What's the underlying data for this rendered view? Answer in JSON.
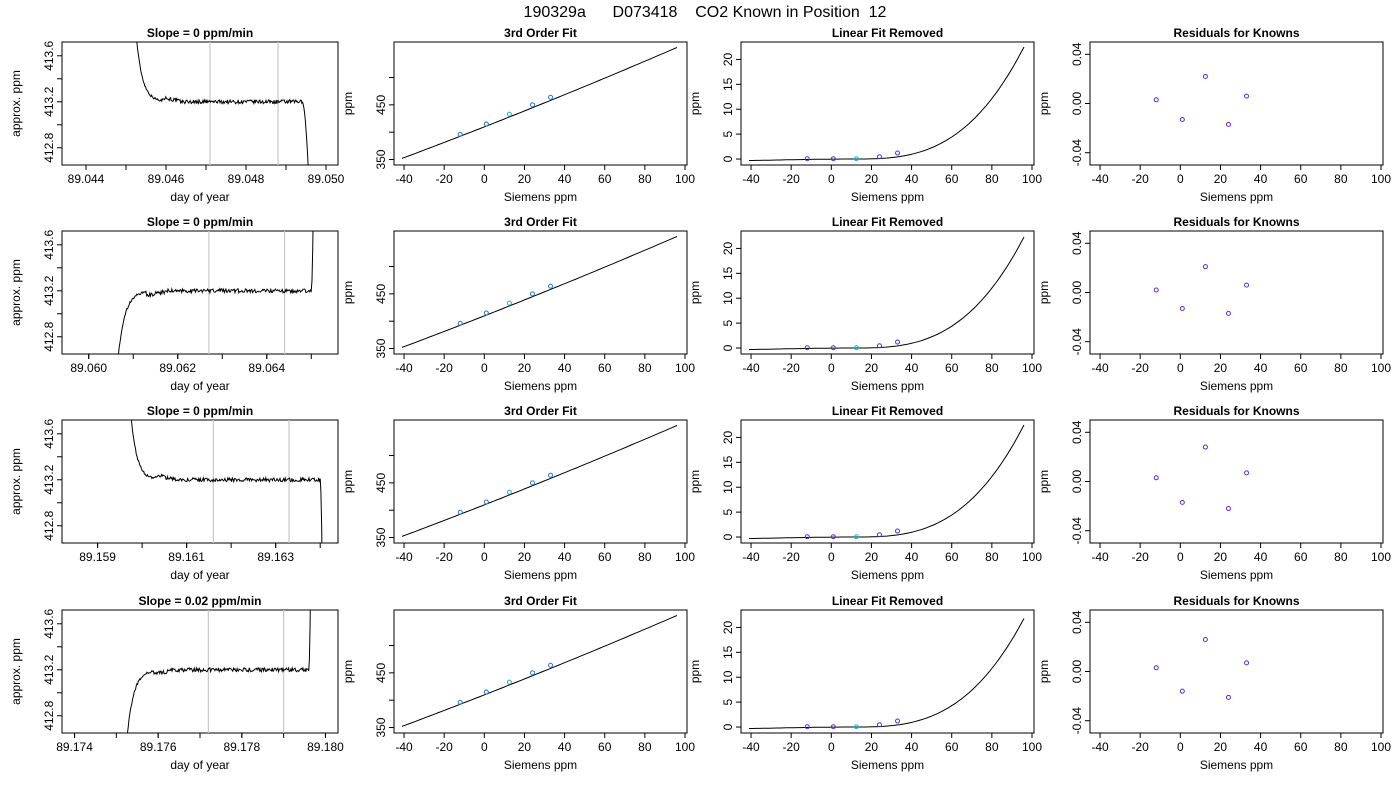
{
  "figure": {
    "title": "190329a      D073418    CO2 Known in Position  12"
  },
  "colors": {
    "axis": "#000000",
    "line": "#000000",
    "vline": "#c8c8c8",
    "point": "#5b2bd9",
    "point_alt": "#1f77d4",
    "point_ref": "#1fb4d6"
  },
  "chart_data": [
    {
      "row": 0,
      "col": 0,
      "type": "line",
      "title": "Slope =  0  ppm/min",
      "xlabel": "day of year",
      "ylabel": "approx. ppm",
      "xlim": [
        89.0434,
        89.0503
      ],
      "ylim": [
        412.65,
        413.72
      ],
      "xticks": [
        "89.044",
        "89.046",
        "89.048",
        "89.050"
      ],
      "xtick_values": [
        89.044,
        89.046,
        89.048,
        89.05
      ],
      "yticks": [
        "412.8",
        "413.2",
        "413.6"
      ],
      "ytick_values": [
        412.8,
        413.2,
        413.6
      ],
      "vlines": [
        89.0471,
        89.0488
      ],
      "x_start": 89.0452,
      "x_plateau": 89.0459,
      "x_drop": 89.0494,
      "x_end": 89.0496,
      "plateau_level": 413.2
    },
    {
      "row": 0,
      "col": 1,
      "type": "line",
      "title": "3rd Order Fit",
      "xlabel": "Siemens ppm",
      "ylabel": "ppm",
      "xlim": [
        -45,
        101
      ],
      "ylim": [
        340,
        565
      ],
      "xticks": [
        "-40",
        "-20",
        "0",
        "20",
        "40",
        "60",
        "80",
        "100"
      ],
      "xtick_values": [
        -40,
        -20,
        0,
        20,
        40,
        60,
        80,
        100
      ],
      "yticks": [
        "350",
        "450"
      ],
      "ytick_values": [
        350,
        450
      ],
      "ytick_minor": [
        400,
        500
      ],
      "curve": {
        "x0": -41,
        "x1": 96,
        "y0": 352,
        "y1": 555
      },
      "points": [
        {
          "x": -12,
          "y": 396
        },
        {
          "x": 1,
          "y": 415
        },
        {
          "x": 12.5,
          "y": 433
        },
        {
          "x": 24,
          "y": 450
        },
        {
          "x": 33,
          "y": 464
        }
      ]
    },
    {
      "row": 0,
      "col": 2,
      "type": "line",
      "title": "Linear Fit Removed",
      "xlabel": "Siemens ppm",
      "ylabel": "ppm",
      "xlim": [
        -45,
        101
      ],
      "ylim": [
        -1.2,
        23.5
      ],
      "xticks": [
        "-40",
        "-20",
        "0",
        "20",
        "40",
        "60",
        "80",
        "100"
      ],
      "xtick_values": [
        -40,
        -20,
        0,
        20,
        40,
        60,
        80,
        100
      ],
      "yticks": [
        "0",
        "5",
        "10",
        "15",
        "20"
      ],
      "ytick_values": [
        0,
        5,
        10,
        15,
        20
      ],
      "curve": {
        "x0": -41,
        "x1": 96,
        "end_value": 22.5
      },
      "points": [
        {
          "x": -12,
          "y": 0.05
        },
        {
          "x": 1,
          "y": 0.05
        },
        {
          "x": 12.5,
          "y": 0.05
        },
        {
          "x": 24,
          "y": 0.45
        },
        {
          "x": 33,
          "y": 1.2
        }
      ]
    },
    {
      "row": 0,
      "col": 3,
      "type": "scatter",
      "title": "Residuals for Knowns",
      "xlabel": "Siemens ppm",
      "ylabel": "ppm",
      "xlim": [
        -45,
        101
      ],
      "ylim": [
        -0.05,
        0.05
      ],
      "xticks": [
        "-40",
        "-20",
        "0",
        "20",
        "40",
        "60",
        "80",
        "100"
      ],
      "xtick_values": [
        -40,
        -20,
        0,
        20,
        40,
        60,
        80,
        100
      ],
      "yticks": [
        "-0.04",
        "0.00",
        "0.04"
      ],
      "ytick_values": [
        -0.04,
        0,
        0.04
      ],
      "points": [
        {
          "x": -12,
          "y": 0.003
        },
        {
          "x": 1,
          "y": -0.013
        },
        {
          "x": 12.5,
          "y": 0.022
        },
        {
          "x": 24,
          "y": -0.017
        },
        {
          "x": 33,
          "y": 0.006
        }
      ]
    },
    {
      "row": 1,
      "col": 0,
      "type": "line",
      "title": "Slope =  0  ppm/min",
      "xlabel": "day of year",
      "ylabel": "approx. ppm",
      "xlim": [
        89.0594,
        89.0656
      ],
      "ylim": [
        412.65,
        413.72
      ],
      "xticks": [
        "89.060",
        "89.062",
        "89.064"
      ],
      "xtick_values": [
        89.06,
        89.062,
        89.064
      ],
      "yticks": [
        "412.8",
        "413.2",
        "413.6"
      ],
      "ytick_values": [
        412.8,
        413.2,
        413.6
      ],
      "vlines": [
        89.0627,
        89.0644
      ],
      "x_start": 89.0606,
      "x_plateau": 89.0613,
      "x_drop": 89.065,
      "x_end": 89.06505,
      "plateau_level": 413.2,
      "rising": true
    },
    {
      "row": 1,
      "col": 1,
      "type": "line",
      "title": "3rd Order Fit",
      "xlabel": "Siemens ppm",
      "ylabel": "ppm",
      "xlim": [
        -45,
        101
      ],
      "ylim": [
        340,
        565
      ],
      "xticks": [
        "-40",
        "-20",
        "0",
        "20",
        "40",
        "60",
        "80",
        "100"
      ],
      "xtick_values": [
        -40,
        -20,
        0,
        20,
        40,
        60,
        80,
        100
      ],
      "yticks": [
        "350",
        "450"
      ],
      "ytick_values": [
        350,
        450
      ],
      "ytick_minor": [
        400,
        500
      ],
      "curve": {
        "x0": -41,
        "x1": 96,
        "y0": 352,
        "y1": 555
      },
      "points": [
        {
          "x": -12,
          "y": 396
        },
        {
          "x": 1,
          "y": 415
        },
        {
          "x": 12.5,
          "y": 433
        },
        {
          "x": 24,
          "y": 450
        },
        {
          "x": 33,
          "y": 464
        }
      ]
    },
    {
      "row": 1,
      "col": 2,
      "type": "line",
      "title": "Linear Fit Removed",
      "xlabel": "Siemens ppm",
      "ylabel": "ppm",
      "xlim": [
        -45,
        101
      ],
      "ylim": [
        -1.2,
        23.5
      ],
      "xticks": [
        "-40",
        "-20",
        "0",
        "20",
        "40",
        "60",
        "80",
        "100"
      ],
      "xtick_values": [
        -40,
        -20,
        0,
        20,
        40,
        60,
        80,
        100
      ],
      "yticks": [
        "0",
        "5",
        "10",
        "15",
        "20"
      ],
      "ytick_values": [
        0,
        5,
        10,
        15,
        20
      ],
      "curve": {
        "x0": -41,
        "x1": 96,
        "end_value": 22.3
      },
      "points": [
        {
          "x": -12,
          "y": 0.05
        },
        {
          "x": 1,
          "y": 0.05
        },
        {
          "x": 12.5,
          "y": 0.05
        },
        {
          "x": 24,
          "y": 0.45
        },
        {
          "x": 33,
          "y": 1.2
        }
      ]
    },
    {
      "row": 1,
      "col": 3,
      "type": "scatter",
      "title": "Residuals for Knowns",
      "xlabel": "Siemens ppm",
      "ylabel": "ppm",
      "xlim": [
        -45,
        101
      ],
      "ylim": [
        -0.05,
        0.05
      ],
      "xticks": [
        "-40",
        "-20",
        "0",
        "20",
        "40",
        "60",
        "80",
        "100"
      ],
      "xtick_values": [
        -40,
        -20,
        0,
        20,
        40,
        60,
        80,
        100
      ],
      "yticks": [
        "-0.04",
        "0.00",
        "0.04"
      ],
      "ytick_values": [
        -0.04,
        0,
        0.04
      ],
      "points": [
        {
          "x": -12,
          "y": 0.002
        },
        {
          "x": 1,
          "y": -0.013
        },
        {
          "x": 12.5,
          "y": 0.021
        },
        {
          "x": 24,
          "y": -0.017
        },
        {
          "x": 33,
          "y": 0.006
        }
      ]
    },
    {
      "row": 2,
      "col": 0,
      "type": "line",
      "title": "Slope =  0  ppm/min",
      "xlabel": "day of year",
      "ylabel": "approx. ppm",
      "xlim": [
        89.1582,
        89.1644
      ],
      "ylim": [
        412.65,
        413.72
      ],
      "xticks": [
        "89.159",
        "89.161",
        "89.163"
      ],
      "xtick_values": [
        89.159,
        89.161,
        89.163
      ],
      "yticks": [
        "412.8",
        "413.2",
        "413.6"
      ],
      "ytick_values": [
        412.8,
        413.2,
        413.6
      ],
      "vlines": [
        89.1616,
        89.1633
      ],
      "x_start": 89.1597,
      "x_plateau": 89.1603,
      "x_drop": 89.164,
      "x_end": 89.16405,
      "plateau_level": 413.2
    },
    {
      "row": 2,
      "col": 1,
      "type": "line",
      "title": "3rd Order Fit",
      "xlabel": "Siemens ppm",
      "ylabel": "ppm",
      "xlim": [
        -45,
        101
      ],
      "ylim": [
        340,
        565
      ],
      "xticks": [
        "-40",
        "-20",
        "0",
        "20",
        "40",
        "60",
        "80",
        "100"
      ],
      "xtick_values": [
        -40,
        -20,
        0,
        20,
        40,
        60,
        80,
        100
      ],
      "yticks": [
        "350",
        "450"
      ],
      "ytick_values": [
        350,
        450
      ],
      "ytick_minor": [
        400,
        500
      ],
      "curve": {
        "x0": -41,
        "x1": 96,
        "y0": 352,
        "y1": 555
      },
      "points": [
        {
          "x": -12,
          "y": 396
        },
        {
          "x": 1,
          "y": 415
        },
        {
          "x": 12.5,
          "y": 433
        },
        {
          "x": 24,
          "y": 450
        },
        {
          "x": 33,
          "y": 464
        }
      ]
    },
    {
      "row": 2,
      "col": 2,
      "type": "line",
      "title": "Linear Fit Removed",
      "xlabel": "Siemens ppm",
      "ylabel": "ppm",
      "xlim": [
        -45,
        101
      ],
      "ylim": [
        -1.2,
        23.5
      ],
      "xticks": [
        "-40",
        "-20",
        "0",
        "20",
        "40",
        "60",
        "80",
        "100"
      ],
      "xtick_values": [
        -40,
        -20,
        0,
        20,
        40,
        60,
        80,
        100
      ],
      "yticks": [
        "0",
        "5",
        "10",
        "15",
        "20"
      ],
      "ytick_values": [
        0,
        5,
        10,
        15,
        20
      ],
      "curve": {
        "x0": -41,
        "x1": 96,
        "end_value": 22.5
      },
      "points": [
        {
          "x": -12,
          "y": 0.05
        },
        {
          "x": 1,
          "y": 0.05
        },
        {
          "x": 12.5,
          "y": 0.05
        },
        {
          "x": 24,
          "y": 0.45
        },
        {
          "x": 33,
          "y": 1.2
        }
      ]
    },
    {
      "row": 2,
      "col": 3,
      "type": "scatter",
      "title": "Residuals for Knowns",
      "xlabel": "Siemens ppm",
      "ylabel": "ppm",
      "xlim": [
        -45,
        101
      ],
      "ylim": [
        -0.05,
        0.05
      ],
      "xticks": [
        "-40",
        "-20",
        "0",
        "20",
        "40",
        "60",
        "80",
        "100"
      ],
      "xtick_values": [
        -40,
        -20,
        0,
        20,
        40,
        60,
        80,
        100
      ],
      "yticks": [
        "-0.04",
        "0.00",
        "0.04"
      ],
      "ytick_values": [
        -0.04,
        0,
        0.04
      ],
      "points": [
        {
          "x": -12,
          "y": 0.003
        },
        {
          "x": 1,
          "y": -0.017
        },
        {
          "x": 12.5,
          "y": 0.028
        },
        {
          "x": 24,
          "y": -0.022
        },
        {
          "x": 33,
          "y": 0.007
        }
      ]
    },
    {
      "row": 3,
      "col": 0,
      "type": "line",
      "title": "Slope =  0.02  ppm/min",
      "xlabel": "day of year",
      "ylabel": "approx. ppm",
      "xlim": [
        89.1737,
        89.1803
      ],
      "ylim": [
        412.65,
        413.72
      ],
      "xticks": [
        "89.174",
        "89.176",
        "89.178",
        "89.180"
      ],
      "xtick_values": [
        89.174,
        89.176,
        89.178,
        89.18
      ],
      "yticks": [
        "412.8",
        "413.2",
        "413.6"
      ],
      "ytick_values": [
        412.8,
        413.2,
        413.6
      ],
      "vlines": [
        89.1772,
        89.179
      ],
      "x_start": 89.1752,
      "x_plateau": 89.1759,
      "x_drop": 89.1796,
      "x_end": 89.17965,
      "plateau_level": 413.2,
      "rising": true
    },
    {
      "row": 3,
      "col": 1,
      "type": "line",
      "title": "3rd Order Fit",
      "xlabel": "Siemens ppm",
      "ylabel": "ppm",
      "xlim": [
        -45,
        101
      ],
      "ylim": [
        340,
        565
      ],
      "xticks": [
        "-40",
        "-20",
        "0",
        "20",
        "40",
        "60",
        "80",
        "100"
      ],
      "xtick_values": [
        -40,
        -20,
        0,
        20,
        40,
        60,
        80,
        100
      ],
      "yticks": [
        "350",
        "450"
      ],
      "ytick_values": [
        350,
        450
      ],
      "ytick_minor": [
        400,
        500
      ],
      "curve": {
        "x0": -41,
        "x1": 96,
        "y0": 352,
        "y1": 555
      },
      "points": [
        {
          "x": -12,
          "y": 396
        },
        {
          "x": 1,
          "y": 415
        },
        {
          "x": 12.5,
          "y": 433
        },
        {
          "x": 24,
          "y": 450
        },
        {
          "x": 33,
          "y": 464
        }
      ]
    },
    {
      "row": 3,
      "col": 2,
      "type": "line",
      "title": "Linear Fit Removed",
      "xlabel": "Siemens ppm",
      "ylabel": "ppm",
      "xlim": [
        -45,
        101
      ],
      "ylim": [
        -1.2,
        23.5
      ],
      "xticks": [
        "-40",
        "-20",
        "0",
        "20",
        "40",
        "60",
        "80",
        "100"
      ],
      "xtick_values": [
        -40,
        -20,
        0,
        20,
        40,
        60,
        80,
        100
      ],
      "yticks": [
        "0",
        "5",
        "10",
        "15",
        "20"
      ],
      "ytick_values": [
        0,
        5,
        10,
        15,
        20
      ],
      "curve": {
        "x0": -41,
        "x1": 96,
        "end_value": 21.8
      },
      "points": [
        {
          "x": -12,
          "y": 0.05
        },
        {
          "x": 1,
          "y": 0.05
        },
        {
          "x": 12.5,
          "y": 0.05
        },
        {
          "x": 24,
          "y": 0.45
        },
        {
          "x": 33,
          "y": 1.2
        }
      ]
    },
    {
      "row": 3,
      "col": 3,
      "type": "scatter",
      "title": "Residuals for Knowns",
      "xlabel": "Siemens ppm",
      "ylabel": "ppm",
      "xlim": [
        -45,
        101
      ],
      "ylim": [
        -0.05,
        0.05
      ],
      "xticks": [
        "-40",
        "-20",
        "0",
        "20",
        "40",
        "60",
        "80",
        "100"
      ],
      "xtick_values": [
        -40,
        -20,
        0,
        20,
        40,
        60,
        80,
        100
      ],
      "yticks": [
        "-0.04",
        "0.00",
        "0.04"
      ],
      "ytick_values": [
        -0.04,
        0,
        0.04
      ],
      "points": [
        {
          "x": -12,
          "y": 0.003
        },
        {
          "x": 1,
          "y": -0.016
        },
        {
          "x": 12.5,
          "y": 0.026
        },
        {
          "x": 24,
          "y": -0.021
        },
        {
          "x": 33,
          "y": 0.007
        }
      ]
    }
  ]
}
